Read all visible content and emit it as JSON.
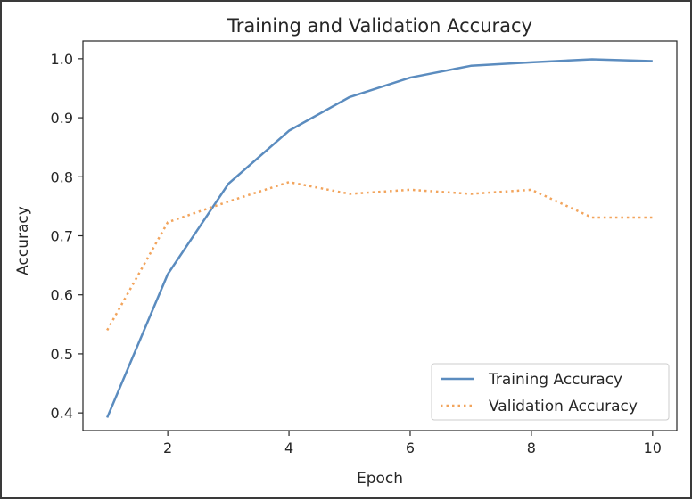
{
  "chart_data": {
    "type": "line",
    "title": "Training and Validation Accuracy",
    "xlabel": "Epoch",
    "ylabel": "Accuracy",
    "xlim": [
      0.6,
      10.4
    ],
    "ylim": [
      0.37,
      1.03
    ],
    "xticks": [
      2,
      4,
      6,
      8,
      10
    ],
    "yticks": [
      0.4,
      0.5,
      0.6,
      0.7,
      0.8,
      0.9,
      1.0
    ],
    "xtick_labels": [
      "2",
      "4",
      "6",
      "8",
      "10"
    ],
    "ytick_labels": [
      "0.4",
      "0.5",
      "0.6",
      "0.7",
      "0.8",
      "0.9",
      "1.0"
    ],
    "grid": false,
    "legend_position": "bottom-right",
    "x": [
      1,
      2,
      3,
      4,
      5,
      6,
      7,
      8,
      9,
      10
    ],
    "series": [
      {
        "name": "Training Accuracy",
        "style": "solid",
        "color": "#5b8cbf",
        "values": [
          0.392,
          0.635,
          0.788,
          0.878,
          0.935,
          0.968,
          0.988,
          0.994,
          0.999,
          0.996
        ]
      },
      {
        "name": "Validation Accuracy",
        "style": "dotted",
        "color": "#f2a45c",
        "values": [
          0.54,
          0.723,
          0.758,
          0.791,
          0.771,
          0.778,
          0.771,
          0.778,
          0.731,
          0.731
        ]
      }
    ]
  }
}
